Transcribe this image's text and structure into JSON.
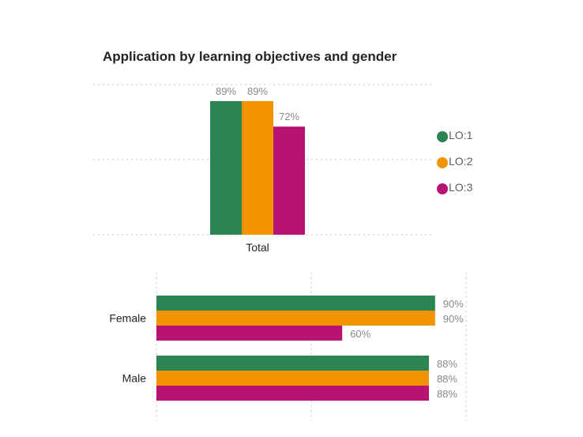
{
  "title": "Application by learning objectives and gender",
  "legend": [
    {
      "label": "LO:1",
      "color": "#2a8553"
    },
    {
      "label": "LO:2",
      "color": "#f29300"
    },
    {
      "label": "LO:3",
      "color": "#b81374"
    }
  ],
  "chart_data": [
    {
      "type": "bar",
      "orientation": "vertical",
      "title": "Application by learning objectives and gender",
      "categories": [
        "Total"
      ],
      "series": [
        {
          "name": "LO:1",
          "values": [
            89
          ],
          "labels": [
            "89%"
          ]
        },
        {
          "name": "LO:2",
          "values": [
            89
          ],
          "labels": [
            "89%"
          ]
        },
        {
          "name": "LO:3",
          "values": [
            72
          ],
          "labels": [
            "72%"
          ]
        }
      ],
      "ylim": [
        0,
        100
      ],
      "unit": "%",
      "grid": true,
      "legend_position": "right"
    },
    {
      "type": "bar",
      "orientation": "horizontal",
      "categories": [
        "Female",
        "Male"
      ],
      "series": [
        {
          "name": "LO:1",
          "values": [
            90,
            88
          ],
          "labels": [
            "90%",
            "88%"
          ]
        },
        {
          "name": "LO:2",
          "values": [
            90,
            88
          ],
          "labels": [
            "90%",
            "88%"
          ]
        },
        {
          "name": "LO:3",
          "values": [
            60,
            88
          ],
          "labels": [
            "60%",
            "88%"
          ]
        }
      ],
      "xlim": [
        0,
        100
      ],
      "unit": "%",
      "grid": true
    }
  ]
}
